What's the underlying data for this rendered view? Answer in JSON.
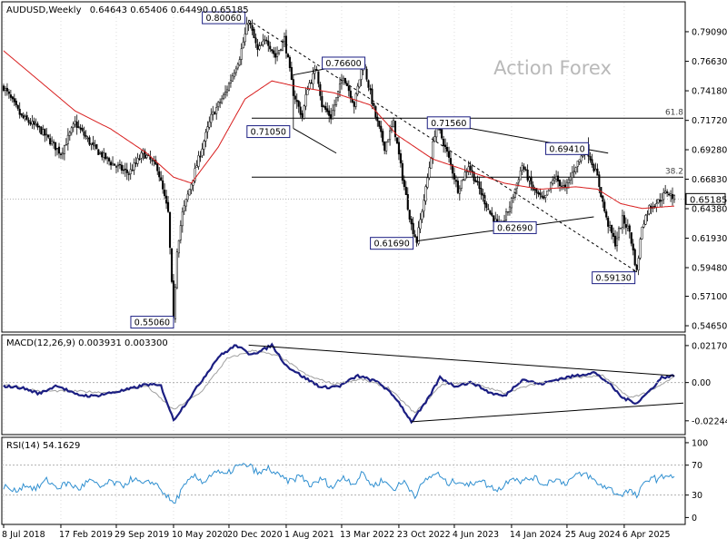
{
  "chart_data": [
    {
      "type": "candlestick",
      "symbol_label": "AUDUSD,Weekly",
      "ohlc_label": "0.64643 0.65406 0.64490 0.65185",
      "watermark": "Action Forex",
      "ylim": [
        0.542,
        0.815
      ],
      "y_ticks": [
        0.7909,
        0.7663,
        0.7418,
        0.7172,
        0.6928,
        0.6683,
        0.6438,
        0.6193,
        0.5948,
        0.571,
        0.5465
      ],
      "current_price": 0.65185,
      "x_ticks": [
        "8 Jul 2018",
        "17 Feb 2019",
        "29 Sep 2019",
        "10 May 2020",
        "20 Dec 2020",
        "1 Aug 2021",
        "13 Mar 2022",
        "23 Oct 2022",
        "4 Jun 2023",
        "14 Jan 2024",
        "25 Aug 2024",
        "6 Apr 2025"
      ],
      "price_path": [
        [
          0,
          0.745
        ],
        [
          10,
          0.72
        ],
        [
          20,
          0.71
        ],
        [
          32,
          0.69
        ],
        [
          40,
          0.715
        ],
        [
          50,
          0.695
        ],
        [
          60,
          0.682
        ],
        [
          70,
          0.673
        ],
        [
          78,
          0.69
        ],
        [
          86,
          0.678
        ],
        [
          92,
          0.64
        ],
        [
          95,
          0.5506
        ],
        [
          97,
          0.61
        ],
        [
          100,
          0.64
        ],
        [
          108,
          0.68
        ],
        [
          116,
          0.72
        ],
        [
          124,
          0.74
        ],
        [
          132,
          0.77
        ],
        [
          137,
          0.8006
        ],
        [
          142,
          0.775
        ],
        [
          147,
          0.785
        ],
        [
          152,
          0.77
        ],
        [
          157,
          0.785
        ],
        [
          162,
          0.74
        ],
        [
          167,
          0.72
        ],
        [
          170,
          0.745
        ],
        [
          175,
          0.76
        ],
        [
          178,
          0.73
        ],
        [
          183,
          0.72
        ],
        [
          190,
          0.755
        ],
        [
          196,
          0.73
        ],
        [
          201,
          0.766
        ],
        [
          208,
          0.72
        ],
        [
          213,
          0.695
        ],
        [
          218,
          0.715
        ],
        [
          223,
          0.67
        ],
        [
          228,
          0.63
        ],
        [
          231,
          0.6169
        ],
        [
          236,
          0.66
        ],
        [
          242,
          0.7156
        ],
        [
          248,
          0.69
        ],
        [
          254,
          0.66
        ],
        [
          260,
          0.68
        ],
        [
          266,
          0.66
        ],
        [
          272,
          0.64
        ],
        [
          278,
          0.6269
        ],
        [
          284,
          0.65
        ],
        [
          290,
          0.68
        ],
        [
          296,
          0.66
        ],
        [
          302,
          0.65
        ],
        [
          308,
          0.67
        ],
        [
          314,
          0.66
        ],
        [
          320,
          0.68
        ],
        [
          326,
          0.6941
        ],
        [
          332,
          0.67
        ],
        [
          337,
          0.635
        ],
        [
          342,
          0.615
        ],
        [
          346,
          0.635
        ],
        [
          350,
          0.625
        ],
        [
          354,
          0.5913
        ],
        [
          357,
          0.63
        ],
        [
          361,
          0.645
        ],
        [
          366,
          0.65
        ],
        [
          371,
          0.658
        ],
        [
          375,
          0.6519
        ]
      ],
      "moving_average_path": [
        [
          0,
          0.775
        ],
        [
          20,
          0.75
        ],
        [
          40,
          0.725
        ],
        [
          60,
          0.71
        ],
        [
          80,
          0.69
        ],
        [
          95,
          0.67
        ],
        [
          105,
          0.665
        ],
        [
          120,
          0.695
        ],
        [
          135,
          0.735
        ],
        [
          150,
          0.75
        ],
        [
          165,
          0.745
        ],
        [
          185,
          0.74
        ],
        [
          205,
          0.73
        ],
        [
          220,
          0.705
        ],
        [
          240,
          0.685
        ],
        [
          260,
          0.675
        ],
        [
          280,
          0.665
        ],
        [
          300,
          0.66
        ],
        [
          320,
          0.662
        ],
        [
          332,
          0.66
        ],
        [
          345,
          0.648
        ],
        [
          357,
          0.644
        ],
        [
          375,
          0.646
        ]
      ],
      "price_labels": [
        {
          "text": "0.80060",
          "x": 137,
          "value": 0.8006
        },
        {
          "text": "0.76600",
          "x": 201,
          "value": 0.766
        },
        {
          "text": "0.71050",
          "x": 162,
          "value": 0.7105
        },
        {
          "text": "0.71560",
          "x": 242,
          "value": 0.7156
        },
        {
          "text": "0.69410",
          "x": 326,
          "value": 0.6941
        },
        {
          "text": "0.61690",
          "x": 231,
          "value": 0.6169
        },
        {
          "text": "0.62690",
          "x": 278,
          "value": 0.6269
        },
        {
          "text": "0.59130",
          "x": 354,
          "value": 0.5913
        },
        {
          "text": "0.55060",
          "x": 95,
          "value": 0.5506
        }
      ],
      "fib_levels": [
        {
          "label": "61.8",
          "value": 0.719
        },
        {
          "label": "38.2",
          "value": 0.67
        }
      ],
      "trendlines": [
        {
          "from": [
            137,
            0.8006
          ],
          "to": [
            354,
            0.5913
          ],
          "style": "dashed"
        },
        {
          "from": [
            162,
            0.755
          ],
          "to": [
            201,
            0.766
          ],
          "style": "solid"
        },
        {
          "from": [
            162,
            0.7105
          ],
          "to": [
            186,
            0.69
          ],
          "style": "solid"
        },
        {
          "from": [
            242,
            0.7156
          ],
          "to": [
            338,
            0.69
          ],
          "style": "solid"
        },
        {
          "from": [
            231,
            0.6169
          ],
          "to": [
            330,
            0.637
          ],
          "style": "solid"
        },
        {
          "from": [
            354,
            0.5913
          ],
          "to": [
            352,
            0.5925
          ],
          "style": "solid"
        }
      ]
    },
    {
      "type": "line",
      "label": "MACD(12,26,9) 0.003931 0.003300",
      "ylim": [
        -0.03,
        0.0275
      ],
      "y_ticks": [
        0.021701,
        0.0,
        -0.022445
      ],
      "y_tick_labels": [
        "0.021701",
        "0.00",
        "-0.022445"
      ],
      "macd_path": [
        [
          0,
          -0.002
        ],
        [
          10,
          -0.003
        ],
        [
          20,
          -0.0065
        ],
        [
          30,
          -0.0015
        ],
        [
          40,
          -0.007
        ],
        [
          50,
          -0.008
        ],
        [
          60,
          -0.006
        ],
        [
          70,
          -0.004
        ],
        [
          80,
          -0.001
        ],
        [
          88,
          -0.002
        ],
        [
          95,
          -0.022
        ],
        [
          102,
          -0.012
        ],
        [
          110,
          0.0
        ],
        [
          120,
          0.015
        ],
        [
          130,
          0.022
        ],
        [
          137,
          0.017
        ],
        [
          143,
          0.018
        ],
        [
          150,
          0.022
        ],
        [
          158,
          0.01
        ],
        [
          168,
          0.003
        ],
        [
          178,
          -0.003
        ],
        [
          188,
          -0.002
        ],
        [
          198,
          0.004
        ],
        [
          210,
          0.0
        ],
        [
          220,
          -0.01
        ],
        [
          228,
          -0.023
        ],
        [
          236,
          -0.012
        ],
        [
          244,
          0.003
        ],
        [
          252,
          -0.002
        ],
        [
          262,
          0.0
        ],
        [
          272,
          -0.006
        ],
        [
          280,
          -0.008
        ],
        [
          290,
          0.002
        ],
        [
          300,
          -0.001
        ],
        [
          310,
          0.002
        ],
        [
          320,
          0.004
        ],
        [
          330,
          0.006
        ],
        [
          338,
          0.0
        ],
        [
          346,
          -0.009
        ],
        [
          354,
          -0.012
        ],
        [
          362,
          -0.004
        ],
        [
          368,
          0.003
        ],
        [
          375,
          0.0039
        ]
      ],
      "signal_path": [
        [
          0,
          -0.001
        ],
        [
          20,
          -0.005
        ],
        [
          40,
          -0.005
        ],
        [
          60,
          -0.006
        ],
        [
          80,
          -0.002
        ],
        [
          95,
          -0.016
        ],
        [
          110,
          -0.006
        ],
        [
          125,
          0.014
        ],
        [
          140,
          0.019
        ],
        [
          155,
          0.015
        ],
        [
          170,
          0.004
        ],
        [
          185,
          -0.001
        ],
        [
          200,
          0.002
        ],
        [
          215,
          -0.003
        ],
        [
          230,
          -0.018
        ],
        [
          245,
          -0.001
        ],
        [
          260,
          0.0
        ],
        [
          280,
          -0.006
        ],
        [
          300,
          0.0
        ],
        [
          320,
          0.003
        ],
        [
          335,
          0.004
        ],
        [
          350,
          -0.009
        ],
        [
          362,
          -0.005
        ],
        [
          375,
          0.0033
        ]
      ],
      "trendlines": [
        {
          "from": [
            137,
            0.022
          ],
          "to": [
            375,
            0.004
          ]
        },
        {
          "from": [
            228,
            -0.023
          ],
          "to": [
            400,
            -0.012
          ]
        }
      ]
    },
    {
      "type": "line",
      "label": "RSI(14) 54.1629",
      "ylim": [
        -8,
        106
      ],
      "y_ticks": [
        100,
        70,
        30,
        0
      ],
      "y_tick_labels": [
        "100",
        "70",
        "30",
        "0"
      ],
      "levels": [
        70,
        30
      ],
      "rsi_path": [
        [
          0,
          42
        ],
        [
          6,
          35
        ],
        [
          12,
          44
        ],
        [
          18,
          38
        ],
        [
          24,
          50
        ],
        [
          30,
          40
        ],
        [
          36,
          46
        ],
        [
          42,
          38
        ],
        [
          48,
          50
        ],
        [
          54,
          40
        ],
        [
          60,
          48
        ],
        [
          66,
          42
        ],
        [
          72,
          52
        ],
        [
          78,
          44
        ],
        [
          84,
          48
        ],
        [
          90,
          32
        ],
        [
          95,
          18
        ],
        [
          100,
          38
        ],
        [
          106,
          55
        ],
        [
          112,
          48
        ],
        [
          118,
          62
        ],
        [
          124,
          56
        ],
        [
          130,
          68
        ],
        [
          137,
          70
        ],
        [
          143,
          58
        ],
        [
          148,
          66
        ],
        [
          154,
          55
        ],
        [
          160,
          48
        ],
        [
          166,
          56
        ],
        [
          172,
          42
        ],
        [
          178,
          52
        ],
        [
          184,
          40
        ],
        [
          190,
          55
        ],
        [
          196,
          45
        ],
        [
          201,
          60
        ],
        [
          206,
          42
        ],
        [
          212,
          50
        ],
        [
          218,
          38
        ],
        [
          224,
          48
        ],
        [
          230,
          30
        ],
        [
          236,
          50
        ],
        [
          242,
          60
        ],
        [
          248,
          45
        ],
        [
          254,
          50
        ],
        [
          260,
          42
        ],
        [
          266,
          52
        ],
        [
          272,
          40
        ],
        [
          278,
          38
        ],
        [
          284,
          55
        ],
        [
          290,
          48
        ],
        [
          296,
          54
        ],
        [
          302,
          44
        ],
        [
          308,
          52
        ],
        [
          314,
          46
        ],
        [
          320,
          56
        ],
        [
          326,
          58
        ],
        [
          332,
          45
        ],
        [
          338,
          40
        ],
        [
          344,
          30
        ],
        [
          350,
          36
        ],
        [
          354,
          28
        ],
        [
          358,
          44
        ],
        [
          362,
          55
        ],
        [
          366,
          50
        ],
        [
          371,
          58
        ],
        [
          375,
          54
        ]
      ]
    }
  ]
}
